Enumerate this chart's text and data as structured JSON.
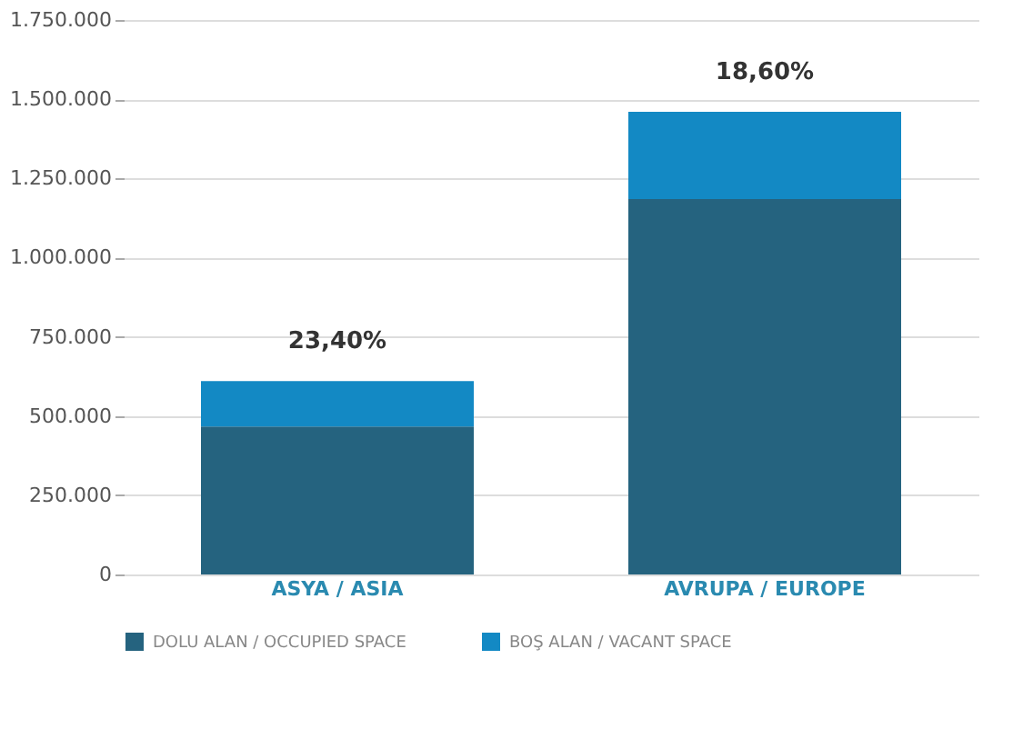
{
  "chart_data": {
    "type": "bar",
    "stacked": true,
    "categories": [
      "ASYA / ASIA",
      "AVRUPA / EUROPE"
    ],
    "series": [
      {
        "name": "DOLU ALAN / OCCUPIED SPACE",
        "color": "#25637f",
        "values": [
          467000,
          1185000
        ]
      },
      {
        "name": "BOŞ ALAN / VACANT SPACE",
        "color": "#1389c4",
        "values": [
          143000,
          275000
        ]
      }
    ],
    "annotations": [
      {
        "text": "23,40%",
        "x": "ASYA / ASIA",
        "y": 610000
      },
      {
        "text": "18,60%",
        "x": "AVRUPA / EUROPE",
        "y": 1460000
      }
    ],
    "ylim": [
      0,
      1750000
    ],
    "yticks": [
      0,
      {
        "value": 250000,
        "label": "250.000"
      },
      {
        "value": 500000,
        "label": "500.000"
      },
      {
        "value": 750000,
        "label": "750.000"
      },
      {
        "value": 1000000,
        "label": "1.000.000"
      },
      {
        "value": 1250000,
        "label": "1.250.000"
      },
      {
        "value": 1500000,
        "label": "1.500.000"
      },
      {
        "value": 1750000,
        "label": "1.750.000"
      }
    ],
    "grid": "y",
    "legend": "bottom"
  }
}
